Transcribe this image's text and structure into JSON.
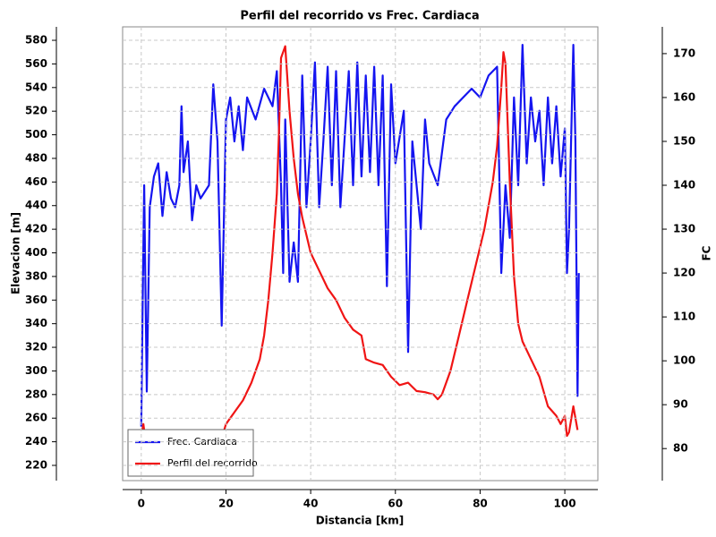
{
  "chart_data": {
    "type": "line",
    "title": "Perfil del recorrido vs Frec. Cardiaca",
    "x_label": "Distancia [km]",
    "y_label": "Elevacion [m]",
    "y2_label": "FC",
    "xlim": [
      -4.4,
      107.8
    ],
    "xticks": [
      0,
      20,
      40,
      60,
      80,
      100
    ],
    "ylim": [
      207.1,
      591.4
    ],
    "yticks": [
      220,
      240,
      260,
      280,
      300,
      320,
      340,
      360,
      380,
      400,
      420,
      440,
      460,
      480,
      500,
      520,
      540,
      560,
      580
    ],
    "y2lim": [
      72.7,
      176.1
    ],
    "y2ticks": [
      80,
      90,
      100,
      110,
      120,
      130,
      140,
      150,
      160,
      170
    ],
    "grid": true,
    "legend": "lower left",
    "series": [
      {
        "name": "Frec. Cardiaca",
        "color": "#1414f0",
        "axis": "y2",
        "x": [
          0,
          0.3,
          0.7,
          1,
          1.3,
          2,
          3,
          4,
          5,
          6,
          7,
          8,
          9,
          9.5,
          10,
          11,
          12,
          13,
          14,
          16,
          17,
          18,
          19,
          20,
          21,
          22,
          23,
          24,
          25,
          27,
          29,
          31,
          32,
          33,
          33.5,
          34,
          35,
          36,
          37,
          38,
          39,
          40,
          41,
          42,
          43,
          44,
          45,
          46,
          47,
          49,
          50,
          51,
          52,
          53,
          54,
          55,
          56,
          57,
          58,
          59,
          60,
          62,
          63,
          64,
          66,
          67,
          68,
          70,
          72,
          74,
          76,
          78,
          80,
          82,
          84,
          85,
          86,
          87,
          88,
          89,
          90,
          91,
          92,
          93,
          94,
          95,
          96,
          97,
          98,
          99,
          100,
          100.5,
          101,
          102,
          102.5,
          103,
          103.3
        ],
        "values": [
          85,
          110,
          140,
          115,
          93,
          135,
          142,
          145,
          133,
          143,
          137,
          135,
          140,
          158,
          143,
          150,
          132,
          140,
          137,
          140,
          163,
          150,
          108,
          155,
          160,
          150,
          158,
          148,
          160,
          155,
          162,
          158,
          166,
          140,
          120,
          155,
          118,
          127,
          118,
          165,
          135,
          150,
          168,
          135,
          150,
          167,
          140,
          166,
          135,
          166,
          140,
          168,
          142,
          165,
          143,
          167,
          140,
          165,
          117,
          163,
          145,
          157,
          102,
          150,
          130,
          155,
          145,
          140,
          155,
          158,
          160,
          162,
          160,
          165,
          167,
          120,
          140,
          128,
          160,
          140,
          172,
          145,
          160,
          150,
          157,
          140,
          160,
          145,
          158,
          142,
          153,
          120,
          130,
          172,
          150,
          92,
          120
        ]
      },
      {
        "name": "Perfil del recorrido",
        "color": "#f01414",
        "axis": "y",
        "x": [
          0,
          0.5,
          1,
          5,
          10,
          15,
          19,
          20,
          22,
          24,
          26,
          28,
          29,
          30,
          31,
          32,
          32.5,
          33,
          34,
          35,
          36,
          37,
          38,
          40,
          42,
          44,
          46,
          48,
          50,
          52,
          53,
          55,
          57,
          59,
          61,
          63,
          65,
          67,
          69,
          70,
          71,
          73,
          75,
          77,
          79,
          81,
          82,
          83,
          84,
          85,
          85.5,
          86,
          87,
          88,
          89,
          90,
          92,
          94,
          96,
          98,
          99,
          100,
          100.5,
          101,
          102,
          103
        ],
        "values": [
          245,
          255,
          240,
          235,
          238,
          238,
          243,
          255,
          265,
          275,
          290,
          310,
          330,
          360,
          400,
          450,
          500,
          565,
          575,
          520,
          480,
          450,
          430,
          400,
          385,
          370,
          360,
          345,
          335,
          330,
          310,
          307,
          305,
          295,
          288,
          290,
          283,
          282,
          280,
          276,
          280,
          300,
          330,
          360,
          390,
          420,
          440,
          460,
          490,
          540,
          570,
          560,
          460,
          380,
          340,
          325,
          310,
          295,
          270,
          262,
          255,
          262,
          245,
          248,
          270,
          250
        ]
      }
    ]
  }
}
